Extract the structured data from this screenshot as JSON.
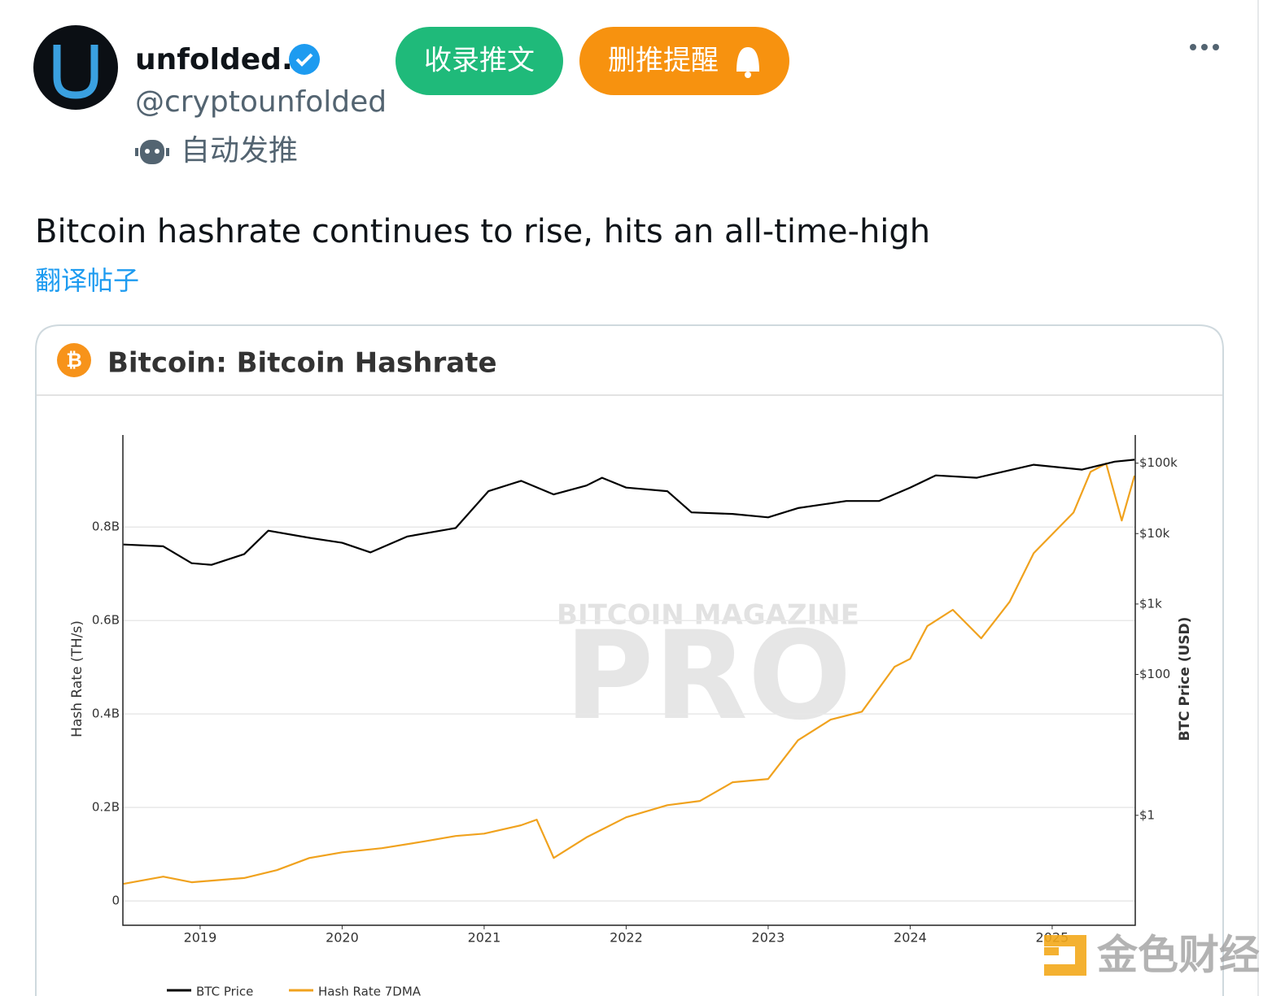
{
  "header": {
    "name": "unfolded.",
    "handle": "@cryptounfolded",
    "bot_label": "自动发推",
    "buttons": [
      "收录推文",
      "删推提醒"
    ]
  },
  "tweet": {
    "text": "Bitcoin hashrate continues to rise, hits an all-time-high",
    "translate": "翻译帖子"
  },
  "card": {
    "title": "Bitcoin: Bitcoin Hashrate"
  },
  "chart_data": {
    "type": "line",
    "ylabel": "Hash Rate (TH/s)",
    "y2label": "BTC Price (USD)",
    "watermark": [
      "BITCOIN MAGAZINE",
      "PRO"
    ],
    "xlim": [
      2018.456,
      2025.585
    ],
    "xticks": [
      2019,
      2020,
      2021,
      2022,
      2023,
      2024,
      2025
    ],
    "ylim": [
      -52000000,
      997000000
    ],
    "yticks": [
      0,
      {
        "value": 200000000,
        "label": "0.2B"
      },
      {
        "value": 400000000,
        "label": "0.4B"
      },
      {
        "value": 600000000,
        "label": "0.6B"
      },
      {
        "value": 800000000,
        "label": "0.8B"
      }
    ],
    "y2lim": [
      0.0275,
      251000
    ],
    "y2log": true,
    "y2ticks": [
      {
        "value": 1,
        "label": "$1"
      },
      {
        "value": 100,
        "label": "$100"
      },
      {
        "value": 1000,
        "label": "$1k"
      },
      {
        "value": 10000,
        "label": "$10k"
      },
      {
        "value": 100000,
        "label": "$100k"
      }
    ],
    "grid": true,
    "series": [
      {
        "name": "BTC Price",
        "color": "#000000",
        "axis": "y2",
        "x": [
          2018.46,
          2018.74,
          2018.94,
          2019.08,
          2019.31,
          2019.48,
          2019.77,
          2020.0,
          2020.2,
          2020.46,
          2020.8,
          2021.03,
          2021.26,
          2021.49,
          2021.72,
          2021.83,
          2022.0,
          2022.29,
          2022.46,
          2022.75,
          2023.0,
          2023.21,
          2023.55,
          2023.78,
          2024.0,
          2024.18,
          2024.47,
          2024.87,
          2025.21,
          2025.44,
          2025.58
        ],
        "values": [
          7000,
          6600,
          3800,
          3600,
          5100,
          11000,
          8700,
          7400,
          5400,
          9100,
          12000,
          40000,
          56000,
          36000,
          48000,
          62000,
          45000,
          40000,
          20000,
          19000,
          17000,
          23000,
          29000,
          29000,
          45000,
          67000,
          62000,
          95000,
          81000,
          105000,
          112000
        ]
      },
      {
        "name": "Hash Rate 7DMA",
        "color": "#f0a21e",
        "x": [
          2018.46,
          2018.74,
          2018.94,
          2019.31,
          2019.54,
          2019.77,
          2020.0,
          2020.28,
          2020.57,
          2020.8,
          2021.0,
          2021.26,
          2021.37,
          2021.49,
          2021.72,
          2022.0,
          2022.29,
          2022.52,
          2022.75,
          2023.0,
          2023.21,
          2023.44,
          2023.66,
          2023.89,
          2024.0,
          2024.12,
          2024.3,
          2024.5,
          2024.7,
          2024.87,
          2025.04,
          2025.15,
          2025.27,
          2025.38,
          2025.49,
          2025.58
        ],
        "values": [
          36500000,
          52000000,
          40000000,
          49000000,
          66000000,
          92000000,
          104000000,
          113000000,
          127000000,
          139000000,
          144000000,
          162000000,
          174000000,
          92000000,
          136000000,
          179000000,
          205000000,
          214000000,
          254000000,
          261000000,
          344000000,
          388000000,
          405000000,
          501000000,
          518000000,
          588000000,
          623000000,
          562000000,
          640000000,
          744000000,
          797000000,
          831000000,
          918000000,
          936000000,
          814000000,
          910000000
        ]
      }
    ]
  },
  "overlay": {
    "watermark": "金色财经"
  }
}
